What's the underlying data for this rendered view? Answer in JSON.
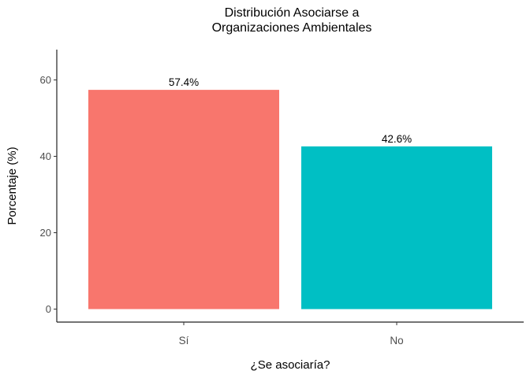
{
  "chart_data": {
    "type": "bar",
    "title": "Distribución Asociarse a\nOrganizaciones Ambientales",
    "xlabel": "¿Se asociaría?",
    "ylabel": "Porcentaje (%)",
    "categories": [
      "Sí",
      "No"
    ],
    "values": [
      57.4,
      42.6
    ],
    "data_labels": [
      "57.4%",
      "42.6%"
    ],
    "colors": [
      "#F8766D",
      "#00BFC4"
    ],
    "ylim": [
      0,
      68
    ],
    "yticks": [
      0,
      20,
      40,
      60
    ],
    "grid": false,
    "legend": "none"
  }
}
